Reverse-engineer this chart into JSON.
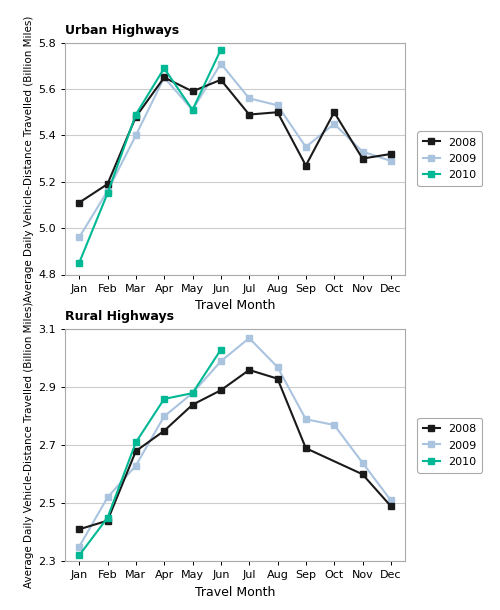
{
  "months": [
    "Jan",
    "Feb",
    "Mar",
    "Apr",
    "May",
    "Jun",
    "Jul",
    "Aug",
    "Sep",
    "Oct",
    "Nov",
    "Dec"
  ],
  "urban": {
    "y2008": [
      5.11,
      5.19,
      5.48,
      5.65,
      5.59,
      5.64,
      5.49,
      5.5,
      5.27,
      5.5,
      5.3,
      5.32
    ],
    "y2009": [
      4.96,
      5.16,
      5.4,
      5.65,
      5.51,
      5.71,
      5.56,
      5.53,
      5.35,
      5.45,
      5.33,
      5.29
    ],
    "y2010": [
      4.85,
      5.15,
      5.49,
      5.69,
      5.51,
      5.77,
      null,
      null,
      null,
      null,
      null,
      null
    ],
    "ylim": [
      4.8,
      5.8
    ],
    "yticks": [
      4.8,
      5.0,
      5.2,
      5.4,
      5.6,
      5.8
    ],
    "title": "Urban Highways",
    "ylabel": "Average Daily Vehicle-Distance Travelled (Billion Miles)"
  },
  "rural": {
    "y2008": [
      2.41,
      2.44,
      2.68,
      2.75,
      2.84,
      2.89,
      2.96,
      2.93,
      2.69,
      null,
      2.6,
      2.49
    ],
    "y2009": [
      2.35,
      2.52,
      2.63,
      2.8,
      2.88,
      2.99,
      3.07,
      2.97,
      2.79,
      2.77,
      2.64,
      2.51
    ],
    "y2010": [
      2.32,
      2.45,
      2.71,
      2.86,
      2.88,
      3.03,
      null,
      null,
      null,
      null,
      null,
      null
    ],
    "ylim": [
      2.3,
      3.1
    ],
    "yticks": [
      2.3,
      2.5,
      2.7,
      2.9,
      3.1
    ],
    "title": "Rural Highways",
    "ylabel": "Average Daily Vehicle-Distance Travelled (Billion Miles)"
  },
  "xlabel": "Travel Month",
  "color_2008": "#1a1a1a",
  "color_2009": "#aac4e0",
  "color_2010": "#00b894",
  "linewidth": 1.5,
  "markersize": 5
}
